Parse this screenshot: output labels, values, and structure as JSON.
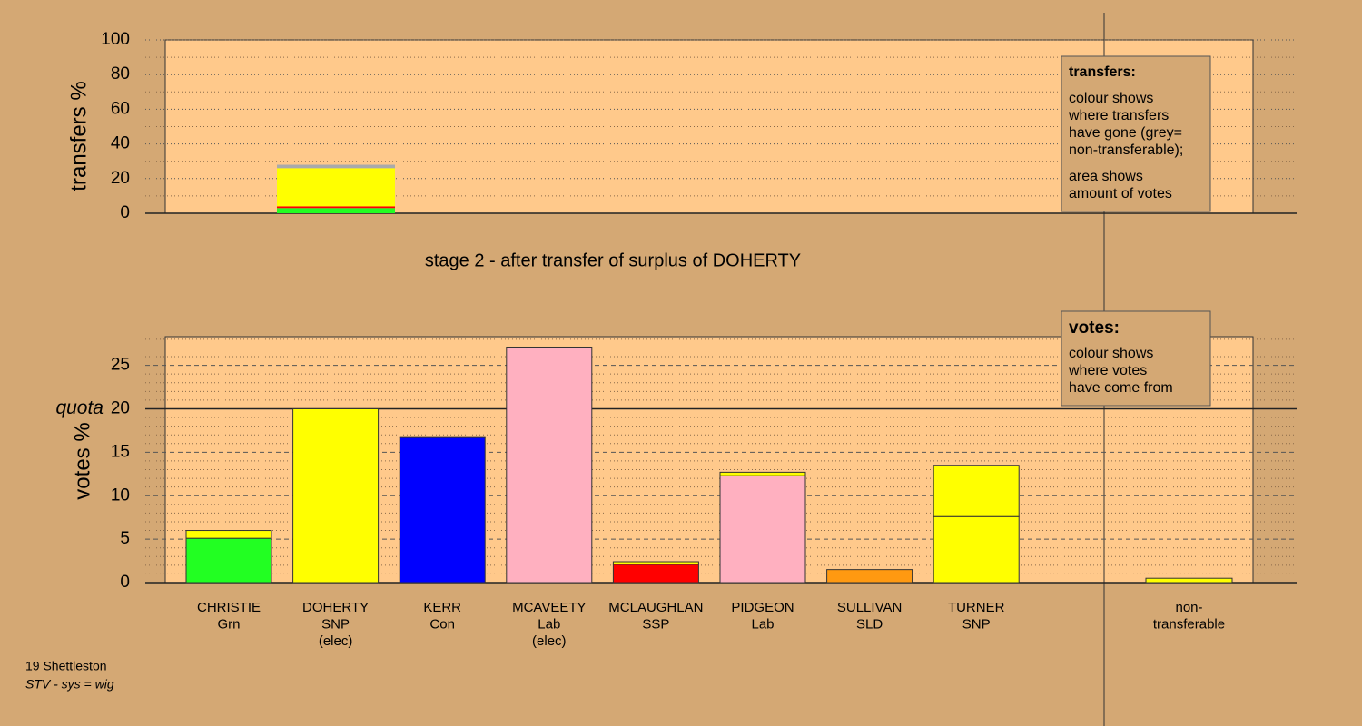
{
  "chart_data": [
    {
      "type": "stacked_bar",
      "ylabel": "transfers %",
      "ylim": [
        0,
        100
      ],
      "yticks": [
        0,
        20,
        40,
        60,
        80,
        100
      ],
      "minor_yticks": [
        10,
        30,
        50,
        70,
        90
      ],
      "grid": true,
      "series": [
        {
          "color": "#22ff22",
          "values": [
            3
          ]
        },
        {
          "color": "#ff0000",
          "values": [
            1
          ]
        },
        {
          "color": "#ffff00",
          "values": [
            22
          ]
        },
        {
          "color": "#aaaaaa",
          "values": [
            2
          ]
        }
      ],
      "legend": {
        "title": "transfers:",
        "lines": [
          "colour shows",
          "where transfers",
          "have gone (grey=",
          "non-transferable);",
          "area shows",
          "amount of votes"
        ]
      }
    },
    {
      "type": "stacked_bar",
      "title": "stage 2 - after transfer of surplus of DOHERTY",
      "ylabel": "votes %",
      "ylim": [
        0,
        28.3
      ],
      "yticks": [
        0,
        5,
        10,
        15,
        20,
        25
      ],
      "minor_yticks": [
        1,
        2,
        3,
        4,
        6,
        7,
        8,
        9,
        11,
        12,
        13,
        14,
        16,
        17,
        18,
        19,
        21,
        22,
        23,
        24,
        26,
        27,
        28
      ],
      "grid": true,
      "quota": 20,
      "quota_label": "quota",
      "categories": [
        [
          "CHRISTIE",
          "Grn"
        ],
        [
          "DOHERTY",
          "SNP",
          "(elec)"
        ],
        [
          "KERR",
          "Con"
        ],
        [
          "MCAVEETY",
          "Lab",
          "(elec)"
        ],
        [
          "MCLAUGHLAN",
          "SSP"
        ],
        [
          "PIDGEON",
          "Lab"
        ],
        [
          "SULLIVAN",
          "SLD"
        ],
        [
          "TURNER",
          "SNP"
        ],
        [
          "non-",
          "transferable"
        ]
      ],
      "series": [
        {
          "colors": [
            "#22ff22",
            "#ffff00",
            "#0000ff",
            "#ffb0c0",
            "#ff0000",
            "#ffb0c0",
            "#ff9911",
            "#ffff00",
            "#ffff00"
          ],
          "values": [
            5.1,
            20,
            16.7,
            27.1,
            2.1,
            12.3,
            1.5,
            7.6,
            0
          ]
        },
        {
          "color": "#ffff00",
          "values": [
            0.9,
            0,
            0.1,
            0,
            0.3,
            0.4,
            0,
            5.9,
            0.5
          ]
        }
      ],
      "legend": {
        "title": "votes:",
        "lines": [
          "colour shows",
          "where votes",
          "have come from"
        ]
      }
    }
  ],
  "footer": {
    "lines": [
      "19 Shettleston"
    ],
    "italic": "STV - sys = wig"
  }
}
